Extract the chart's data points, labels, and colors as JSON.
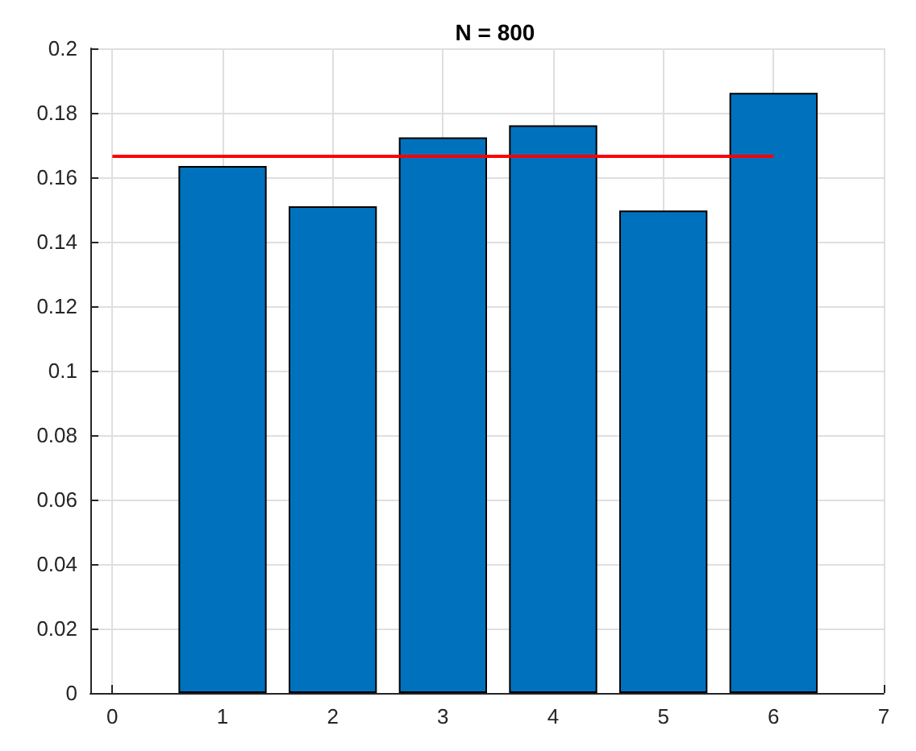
{
  "chart_data": {
    "type": "bar",
    "title": "N = 800",
    "x": [
      1,
      2,
      3,
      4,
      5,
      6
    ],
    "series": [
      {
        "color": "#0072bd",
        "values": [
          0.1635,
          0.151,
          0.1724,
          0.1761,
          0.1497,
          0.1862
        ]
      },
      {
        "type": "line",
        "color": "#ff0000",
        "x": [
          0,
          6
        ],
        "values": [
          0.1665,
          0.1665
        ]
      }
    ],
    "xlim": [
      -0.2,
      7
    ],
    "xticks": [
      0,
      1,
      2,
      3,
      4,
      5,
      6,
      7
    ],
    "ylim": [
      0,
      0.2
    ],
    "yticks": [
      0,
      0.02,
      0.04,
      0.06,
      0.08,
      0.1,
      0.12,
      0.14,
      0.16,
      0.18,
      0.2
    ],
    "grid": true
  }
}
